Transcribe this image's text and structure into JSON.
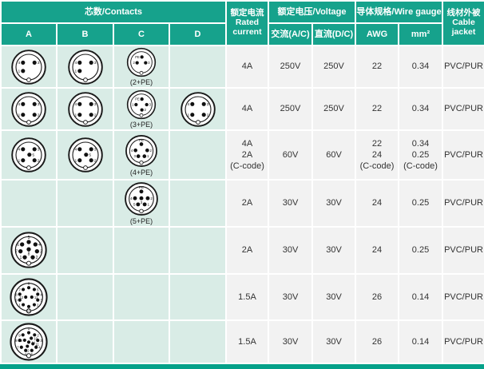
{
  "colors": {
    "header_teal": "#16a28c",
    "bottom_bar_teal": "#04a189",
    "diagram_cell_bg": "#d9ece6",
    "value_cell_bg": "#f2f2f2"
  },
  "table": {
    "header": {
      "contacts": "芯数/Contacts",
      "cols": [
        "A",
        "B",
        "C",
        "D"
      ],
      "rated_current": [
        "额定电流",
        "Rated",
        "current"
      ],
      "voltage": "额定电压/Voltage",
      "ac": "交流(A/C)",
      "dc": "直流(D/C)",
      "wire_gauge": "导体规格/Wire gauge",
      "awg": "AWG",
      "mm2": "mm²",
      "cable_jacket": [
        "线材外被",
        "Cable",
        "jacket"
      ]
    },
    "rows": [
      {
        "contacts": {
          "A": {
            "size": 48,
            "pins": [
              {
                "x": -0.45,
                "y": -0.35,
                "l": "4",
                "s": "l"
              },
              {
                "x": 0.45,
                "y": -0.35,
                "l": "3",
                "s": "r"
              },
              {
                "x": -0.45,
                "y": 0.3,
                "l": "1",
                "s": "l"
              }
            ]
          },
          "B": {
            "size": 48,
            "pins": [
              {
                "x": -0.45,
                "y": -0.35,
                "l": "4",
                "s": "l"
              },
              {
                "x": 0.45,
                "y": -0.35,
                "l": "3",
                "s": "r"
              },
              {
                "x": -0.45,
                "y": 0.3,
                "l": "1",
                "s": "l"
              }
            ]
          },
          "C": {
            "size": 40,
            "caption": "(2+PE)",
            "pins": [
              {
                "x": 0.05,
                "y": -0.5,
                "l": "PE",
                "s": "l"
              },
              {
                "x": -0.4,
                "y": 0.05,
                "l": "2",
                "s": "l"
              },
              {
                "x": 0.4,
                "y": 0.05,
                "l": "3",
                "s": "r"
              }
            ]
          },
          "D": null
        },
        "current": "4A",
        "ac": "250V",
        "dc": "250V",
        "awg": "22",
        "mm2": "0.34",
        "jacket": "PVC/PUR"
      },
      {
        "contacts": {
          "A": {
            "size": 48,
            "pins": [
              {
                "x": -0.45,
                "y": -0.42,
                "l": "4",
                "s": "l"
              },
              {
                "x": 0.45,
                "y": -0.42,
                "l": "3",
                "s": "r"
              },
              {
                "x": -0.45,
                "y": 0.42,
                "l": "1",
                "s": "l"
              },
              {
                "x": 0.45,
                "y": 0.42,
                "l": "2",
                "s": "r"
              }
            ]
          },
          "B": {
            "size": 48,
            "pins": [
              {
                "x": -0.45,
                "y": -0.42,
                "l": "4",
                "s": "l"
              },
              {
                "x": 0.45,
                "y": -0.42,
                "l": "3",
                "s": "r"
              },
              {
                "x": -0.45,
                "y": 0.42,
                "l": "1",
                "s": "l"
              },
              {
                "x": 0.45,
                "y": 0.42,
                "l": "2",
                "s": "r"
              }
            ]
          },
          "C": {
            "size": 40,
            "caption": "(3+PE)",
            "pins": [
              {
                "x": 0.05,
                "y": -0.52,
                "l": "PE",
                "s": "l"
              },
              {
                "x": -0.5,
                "y": 0,
                "l": "1",
                "s": "l"
              },
              {
                "x": 0.5,
                "y": 0,
                "l": "3",
                "s": "r"
              },
              {
                "x": 0.05,
                "y": 0.5,
                "l": "2",
                "s": "r"
              }
            ]
          },
          "D": {
            "size": 48,
            "pins": [
              {
                "x": -0.45,
                "y": -0.42,
                "l": "4",
                "s": "l"
              },
              {
                "x": 0.45,
                "y": -0.42,
                "l": "3",
                "s": "r"
              },
              {
                "x": -0.45,
                "y": 0.42,
                "l": "1",
                "s": "l"
              },
              {
                "x": 0.45,
                "y": 0.42,
                "l": "2",
                "s": "r"
              }
            ]
          }
        },
        "current": "4A",
        "ac": "250V",
        "dc": "250V",
        "awg": "22",
        "mm2": "0.34",
        "jacket": "PVC/PUR"
      },
      {
        "contacts": {
          "A": {
            "size": 48,
            "pins": [
              {
                "x": -0.45,
                "y": -0.45,
                "l": "4",
                "s": "l"
              },
              {
                "x": 0.45,
                "y": -0.45,
                "l": "3",
                "s": "r"
              },
              {
                "x": 0.05,
                "y": -0.02,
                "l": "5",
                "s": "r"
              },
              {
                "x": -0.45,
                "y": 0.42,
                "l": "1",
                "s": "l"
              },
              {
                "x": 0.45,
                "y": 0.42,
                "l": "2",
                "s": "r"
              }
            ]
          },
          "B": {
            "size": 48,
            "pins": [
              {
                "x": -0.45,
                "y": -0.45,
                "l": "4",
                "s": "l"
              },
              {
                "x": 0.45,
                "y": -0.45,
                "l": "3",
                "s": "r"
              },
              {
                "x": 0.05,
                "y": -0.02,
                "l": "5",
                "s": "r"
              },
              {
                "x": -0.45,
                "y": 0.42,
                "l": "1",
                "s": "l"
              },
              {
                "x": 0.45,
                "y": 0.42,
                "l": "2",
                "s": "r"
              }
            ]
          },
          "C": {
            "size": 44,
            "caption": "(4+PE)",
            "pins": [
              {
                "x": 0,
                "y": -0.58,
                "l": "PE",
                "s": "t"
              },
              {
                "x": -0.5,
                "y": -0.05,
                "l": "4",
                "s": "l"
              },
              {
                "x": 0.5,
                "y": -0.05,
                "l": "2",
                "s": "r"
              },
              {
                "x": -0.26,
                "y": 0.45,
                "l": "3",
                "s": "l"
              },
              {
                "x": 0.26,
                "y": 0.45,
                "l": "1",
                "s": "r"
              }
            ]
          },
          "D": null
        },
        "current": [
          "4A",
          "2A",
          "(C-code)"
        ],
        "ac": "60V",
        "dc": "60V",
        "awg": [
          "22",
          "24",
          "(C-code)"
        ],
        "mm2": [
          "0.34",
          "0.25",
          "(C-code)"
        ],
        "jacket": "PVC/PUR"
      },
      {
        "contacts": {
          "A": null,
          "B": null,
          "C": {
            "size": 46,
            "caption": "(5+PE)",
            "pins": [
              {
                "x": 0,
                "y": -0.6,
                "l": "PE",
                "s": "t"
              },
              {
                "x": -0.52,
                "y": -0.05,
                "l": "4",
                "s": "l"
              },
              {
                "x": 0,
                "y": -0.05,
                "l": "3",
                "s": "b"
              },
              {
                "x": 0.52,
                "y": -0.05,
                "l": "2",
                "s": "r"
              },
              {
                "x": -0.27,
                "y": 0.45,
                "l": "5",
                "s": "l"
              },
              {
                "x": 0.27,
                "y": 0.45,
                "l": "1",
                "s": "r"
              }
            ]
          },
          "D": null
        },
        "current": "2A",
        "ac": "30V",
        "dc": "30V",
        "awg": "24",
        "mm2": "0.25",
        "jacket": "PVC/PUR"
      },
      {
        "contacts": {
          "A": {
            "size": 50,
            "pins": [
              {
                "x": -0.5,
                "y": -0.42,
                "l": "6",
                "s": "l"
              },
              {
                "x": 0,
                "y": -0.6,
                "l": "5",
                "s": "t"
              },
              {
                "x": 0.5,
                "y": -0.42,
                "l": "4",
                "s": "r"
              },
              {
                "x": -0.62,
                "y": 0.1,
                "l": "7",
                "s": "l"
              },
              {
                "x": 0,
                "y": -0.05,
                "l": "8",
                "s": "b"
              },
              {
                "x": 0.62,
                "y": 0.1,
                "l": "3",
                "s": "r"
              },
              {
                "x": -0.3,
                "y": 0.55,
                "l": "1",
                "s": "l"
              },
              {
                "x": 0.3,
                "y": 0.55,
                "l": "2",
                "s": "r"
              }
            ]
          },
          "B": null,
          "C": null,
          "D": null
        },
        "current": "2A",
        "ac": "30V",
        "dc": "30V",
        "awg": "24",
        "mm2": "0.25",
        "jacket": "PVC/PUR"
      },
      {
        "contacts": {
          "A": {
            "size": 52,
            "small": true,
            "pins": [
              {
                "x": 0,
                "y": -0.68,
                "l": "6",
                "s": "t"
              },
              {
                "x": 0.4,
                "y": -0.55,
                "l": "5",
                "s": "r"
              },
              {
                "x": 0.65,
                "y": -0.21,
                "l": "4",
                "s": "r"
              },
              {
                "x": 0.65,
                "y": 0.21,
                "l": "3",
                "s": "r"
              },
              {
                "x": 0.4,
                "y": 0.55,
                "l": "2",
                "s": "r"
              },
              {
                "x": 0,
                "y": 0.68,
                "l": "10",
                "s": "b"
              },
              {
                "x": -0.4,
                "y": 0.55,
                "l": "1",
                "s": "l"
              },
              {
                "x": -0.65,
                "y": 0.21,
                "l": "9",
                "s": "l"
              },
              {
                "x": -0.65,
                "y": -0.21,
                "l": "8",
                "s": "l"
              },
              {
                "x": -0.4,
                "y": -0.55,
                "l": "7",
                "s": "l"
              },
              {
                "x": -0.22,
                "y": 0,
                "l": "12",
                "s": "l"
              },
              {
                "x": 0.22,
                "y": 0,
                "l": "11",
                "s": "r"
              }
            ]
          },
          "B": null,
          "C": null,
          "D": null
        },
        "current": "1.5A",
        "ac": "30V",
        "dc": "30V",
        "awg": "26",
        "mm2": "0.14",
        "jacket": "PVC/PUR"
      },
      {
        "contacts": {
          "A": {
            "size": 52,
            "small": true,
            "pins": [
              {
                "x": 0,
                "y": -0.66,
                "l": "1",
                "s": "t"
              },
              {
                "x": 0.42,
                "y": -0.5,
                "l": "2",
                "s": "r"
              },
              {
                "x": 0.65,
                "y": -0.11,
                "l": "3",
                "s": "r"
              },
              {
                "x": 0.53,
                "y": 0.39,
                "l": "4",
                "s": "r"
              },
              {
                "x": 0.22,
                "y": 0.62,
                "l": "5",
                "s": "b"
              },
              {
                "x": -0.22,
                "y": 0.62,
                "l": "6",
                "s": "b"
              },
              {
                "x": -0.53,
                "y": 0.39,
                "l": "7",
                "s": "l"
              },
              {
                "x": -0.65,
                "y": -0.11,
                "l": "8",
                "s": "l"
              },
              {
                "x": -0.42,
                "y": -0.5,
                "l": "9",
                "s": "l"
              },
              {
                "x": 0.18,
                "y": -0.26,
                "l": "10",
                "s": "r"
              },
              {
                "x": 0.3,
                "y": 0.14,
                "l": "11",
                "s": "r"
              },
              {
                "x": -0.1,
                "y": 0.32,
                "l": "12",
                "s": "b"
              },
              {
                "x": -0.3,
                "y": -0.12,
                "l": "13",
                "s": "l"
              },
              {
                "x": 0,
                "y": 0.02,
                "l": "14",
                "s": "r"
              }
            ]
          },
          "B": null,
          "C": null,
          "D": null
        },
        "current": "1.5A",
        "ac": "30V",
        "dc": "30V",
        "awg": "26",
        "mm2": "0.14",
        "jacket": "PVC/PUR"
      }
    ]
  }
}
